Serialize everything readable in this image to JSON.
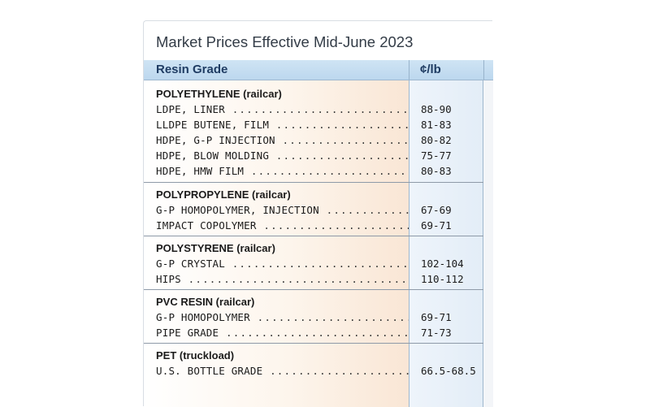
{
  "title": "Market Prices Effective Mid-June 2023",
  "header": {
    "grade_label": "Resin Grade",
    "price_label": "¢/lb"
  },
  "groups": [
    {
      "name": "POLYETHYLENE (railcar)",
      "items": [
        {
          "grade": "LDPE, LINER",
          "price": "88-90"
        },
        {
          "grade": "LLDPE BUTENE, FILM",
          "price": "81-83"
        },
        {
          "grade": "HDPE, G-P INJECTION",
          "price": "80-82"
        },
        {
          "grade": "HDPE, BLOW MOLDING",
          "price": "75-77"
        },
        {
          "grade": "HDPE, HMW FILM",
          "price": "80-83"
        }
      ]
    },
    {
      "name": "POLYPROPYLENE (railcar)",
      "items": [
        {
          "grade": "G-P HOMOPOLYMER, INJECTION",
          "price": "67-69"
        },
        {
          "grade": "IMPACT COPOLYMER",
          "price": "69-71"
        }
      ]
    },
    {
      "name": "POLYSTYRENE (railcar)",
      "items": [
        {
          "grade": "G-P CRYSTAL",
          "price": "102-104"
        },
        {
          "grade": "HIPS",
          "price": "110-112"
        }
      ]
    },
    {
      "name": "PVC RESIN (railcar)",
      "items": [
        {
          "grade": "G-P HOMOPOLYMER",
          "price": "69-71"
        },
        {
          "grade": "PIPE GRADE",
          "price": "71-73"
        }
      ]
    },
    {
      "name": "PET (truckload)",
      "items": [
        {
          "grade": "U.S. BOTTLE GRADE",
          "price": "66.5-68.5"
        }
      ]
    }
  ]
}
